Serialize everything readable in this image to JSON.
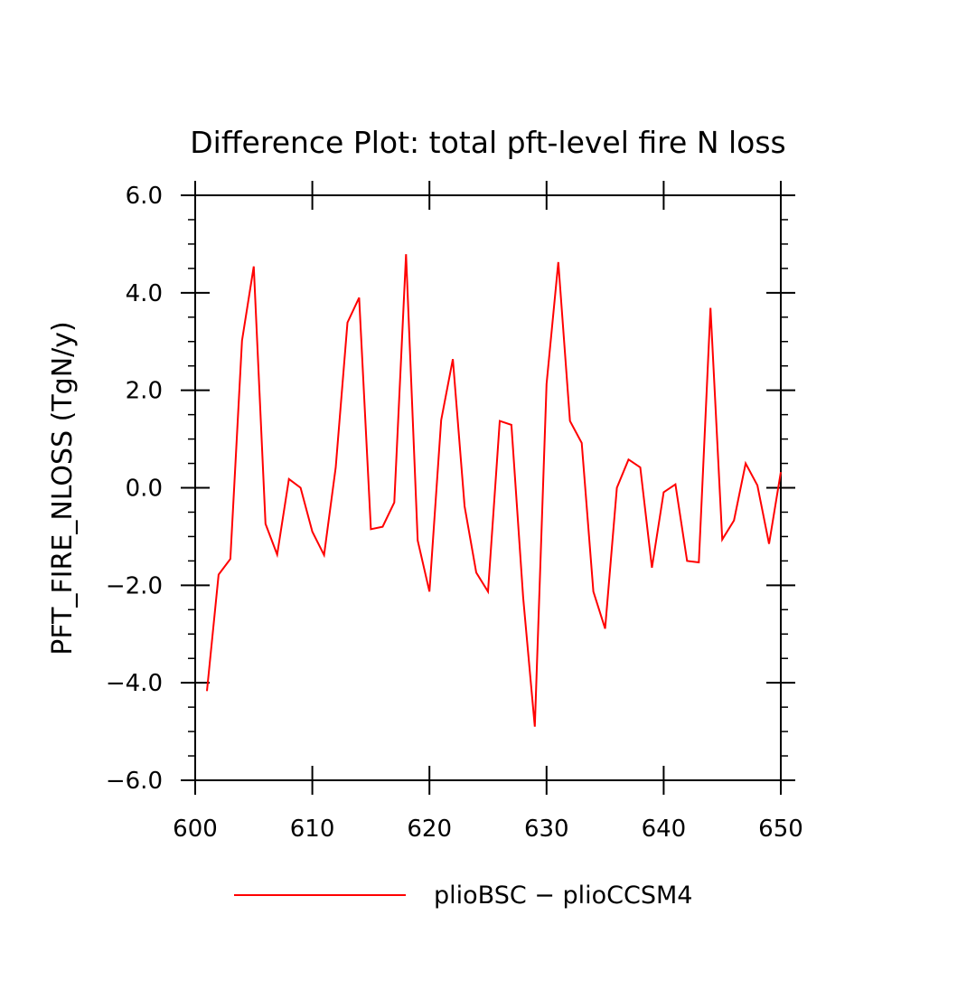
{
  "chart_data": {
    "type": "line",
    "title": "Difference Plot: total pft-level fire N loss",
    "xlabel": "",
    "ylabel": "PFT_FIRE_NLOSS  (TgN/y)",
    "xlim": [
      600,
      650
    ],
    "ylim": [
      -6.0,
      6.0
    ],
    "x_ticks": [
      600,
      610,
      620,
      630,
      640,
      650
    ],
    "x_tick_labels": [
      "600",
      "610",
      "620",
      "630",
      "640",
      "650"
    ],
    "y_ticks": [
      -6,
      -4,
      -2,
      0,
      2,
      4,
      6
    ],
    "y_tick_labels": [
      "−6.0",
      "−4.0",
      "−2.0",
      "0.0",
      "2.0",
      "4.0",
      "6.0"
    ],
    "grid": false,
    "legend_position": "bottom",
    "series": [
      {
        "name": "plioBSC − plioCCSM4",
        "color": "#ff0000",
        "x": [
          601,
          602,
          603,
          604,
          605,
          606,
          607,
          608,
          609,
          610,
          611,
          612,
          613,
          614,
          615,
          616,
          617,
          618,
          619,
          620,
          621,
          622,
          623,
          624,
          625,
          626,
          627,
          628,
          629,
          630,
          631,
          632,
          633,
          634,
          635,
          636,
          637,
          638,
          639,
          640,
          641,
          642,
          643,
          644,
          645,
          646,
          647,
          648,
          649,
          650
        ],
        "values": [
          -4.17,
          -1.78,
          -1.46,
          3.02,
          4.54,
          -0.74,
          -1.37,
          0.18,
          0.0,
          -0.9,
          -1.38,
          0.42,
          3.39,
          3.9,
          -0.85,
          -0.8,
          -0.3,
          4.79,
          -1.08,
          -2.13,
          1.39,
          2.64,
          -0.38,
          -1.74,
          -2.13,
          1.37,
          1.29,
          -2.25,
          -4.9,
          2.13,
          4.63,
          1.37,
          0.92,
          -2.13,
          -2.89,
          0.0,
          0.58,
          0.42,
          -1.64,
          -0.09,
          0.07,
          -1.5,
          -1.53,
          3.69,
          -1.06,
          -0.67,
          0.5,
          0.05,
          -1.15,
          0.32
        ]
      }
    ]
  }
}
